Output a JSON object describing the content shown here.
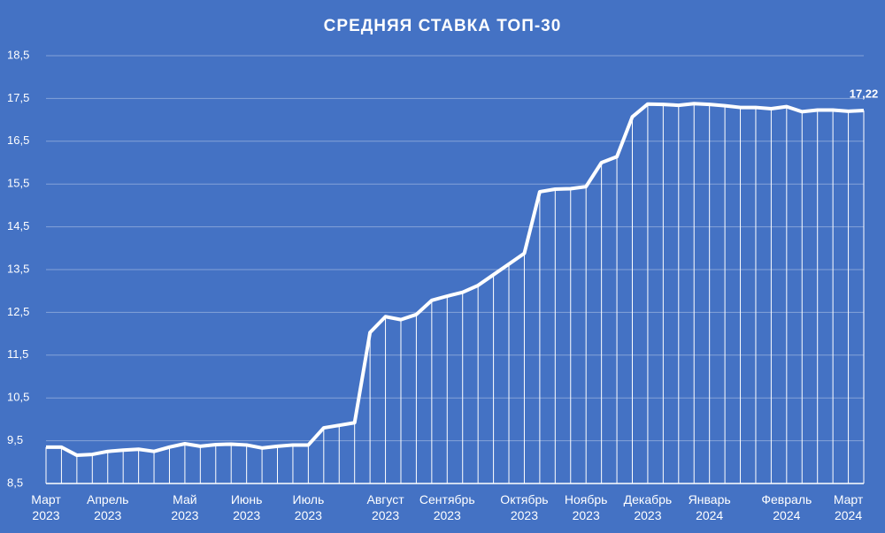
{
  "chart_data": {
    "type": "line",
    "title": "СРЕДНЯЯ СТАВКА ТОП-30",
    "categories": [
      "Март 2023",
      null,
      null,
      null,
      "Апрель 2023",
      null,
      null,
      null,
      null,
      "Май 2023",
      null,
      null,
      null,
      "Июнь 2023",
      null,
      null,
      null,
      "Июль 2023",
      null,
      null,
      null,
      null,
      "Август 2023",
      null,
      null,
      null,
      "Сентябрь 2023",
      null,
      null,
      null,
      null,
      "Октябрь 2023",
      null,
      null,
      null,
      "Ноябрь 2023",
      null,
      null,
      null,
      "Декабрь 2023",
      null,
      null,
      null,
      "Январь 2024",
      null,
      null,
      null,
      null,
      "Февраль 2024",
      null,
      null,
      null,
      "Март 2024",
      null
    ],
    "series": [
      {
        "color": "#ffffff",
        "values": [
          9.35,
          9.35,
          9.16,
          9.18,
          9.25,
          9.28,
          9.3,
          9.25,
          9.35,
          9.43,
          9.37,
          9.41,
          9.42,
          9.4,
          9.33,
          9.37,
          9.4,
          9.4,
          9.8,
          9.86,
          9.92,
          12.03,
          12.4,
          12.33,
          12.45,
          12.78,
          12.88,
          12.97,
          13.13,
          13.38,
          13.63,
          13.88,
          15.32,
          15.38,
          15.39,
          15.44,
          16.0,
          16.14,
          17.07,
          17.37,
          17.36,
          17.34,
          17.38,
          17.36,
          17.33,
          17.29,
          17.29,
          17.26,
          17.31,
          17.19,
          17.23,
          17.23,
          17.2,
          17.22
        ],
        "value_labels": [
          null,
          null,
          null,
          null,
          null,
          null,
          null,
          null,
          null,
          null,
          null,
          null,
          null,
          null,
          null,
          null,
          null,
          null,
          null,
          null,
          null,
          null,
          null,
          null,
          null,
          null,
          null,
          null,
          null,
          null,
          null,
          null,
          null,
          null,
          null,
          null,
          null,
          null,
          null,
          null,
          null,
          null,
          null,
          null,
          null,
          null,
          null,
          null,
          null,
          null,
          null,
          null,
          null,
          "17,22"
        ]
      }
    ],
    "ylim": [
      8.5,
      18.5
    ],
    "yticks": [
      {
        "value": 8.5,
        "label": "8,5"
      },
      {
        "value": 9.5,
        "label": "9,5"
      },
      {
        "value": 10.5,
        "label": "10,5"
      },
      {
        "value": 11.5,
        "label": "11,5"
      },
      {
        "value": 12.5,
        "label": "12,5"
      },
      {
        "value": 13.5,
        "label": "13,5"
      },
      {
        "value": 14.5,
        "label": "14,5"
      },
      {
        "value": 15.5,
        "label": "15,5"
      },
      {
        "value": 16.5,
        "label": "16,5"
      },
      {
        "value": 17.5,
        "label": "17,5"
      },
      {
        "value": 18.5,
        "label": "18,5"
      }
    ],
    "grid": true
  }
}
